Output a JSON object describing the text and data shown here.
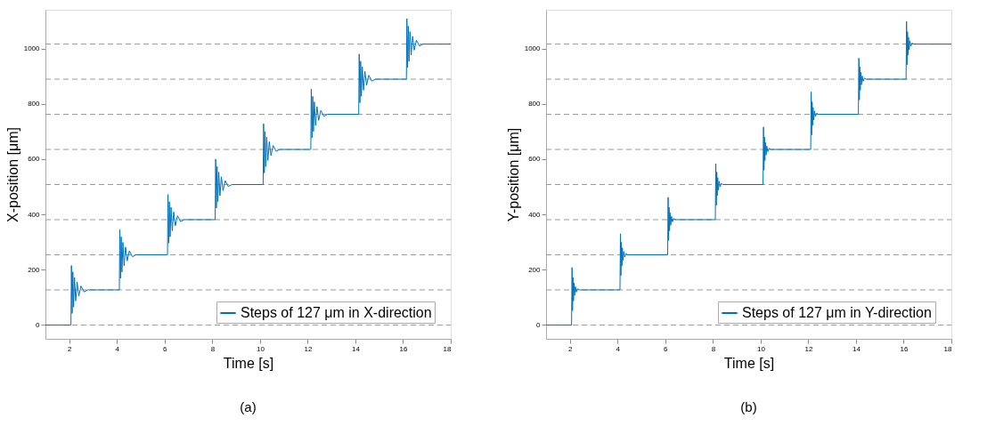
{
  "chart_data": [
    {
      "type": "line",
      "xlabel": "Time [s]",
      "ylabel": "X-position [μm]",
      "annotations": [
        "(a)"
      ],
      "xlim": [
        1,
        18
      ],
      "xticks": [
        2,
        4,
        6,
        8,
        10,
        12,
        14,
        16,
        18
      ],
      "ylim": [
        -50,
        1140
      ],
      "yticks": [
        0,
        200,
        400,
        600,
        800,
        1000
      ],
      "legend": "bottom right",
      "grid": false,
      "line_style": "solid",
      "ref_lines": [
        {
          "axis": "y",
          "value": 0,
          "color": "#999999",
          "line_style": "dashed"
        },
        {
          "axis": "y",
          "value": 127,
          "color": "#999999",
          "line_style": "dashed"
        },
        {
          "axis": "y",
          "value": 254,
          "color": "#999999",
          "line_style": "dashed"
        },
        {
          "axis": "y",
          "value": 381,
          "color": "#999999",
          "line_style": "dashed"
        },
        {
          "axis": "y",
          "value": 508,
          "color": "#999999",
          "line_style": "dashed"
        },
        {
          "axis": "y",
          "value": 635,
          "color": "#999999",
          "line_style": "dashed"
        },
        {
          "axis": "y",
          "value": 762,
          "color": "#999999",
          "line_style": "dashed"
        },
        {
          "axis": "y",
          "value": 889,
          "color": "#999999",
          "line_style": "dashed"
        },
        {
          "axis": "y",
          "value": 1016,
          "color": "#999999",
          "line_style": "dashed"
        }
      ],
      "series": [
        {
          "name": "Steps of 127 μm in X-direction",
          "color": "#0072bd",
          "x": [
            1,
            2.07,
            2.09,
            2.12,
            2.15,
            2.18,
            2.22,
            2.27,
            2.33,
            2.4,
            2.49,
            2.62,
            2.77,
            4.1,
            4.12,
            4.15,
            4.18,
            4.21,
            4.25,
            4.3,
            4.36,
            4.43,
            4.52,
            4.65,
            4.8,
            6.12,
            6.14,
            6.17,
            6.2,
            6.23,
            6.27,
            6.32,
            6.38,
            6.45,
            6.54,
            6.67,
            6.82,
            8.12,
            8.14,
            8.17,
            8.2,
            8.23,
            8.27,
            8.32,
            8.38,
            8.45,
            8.54,
            8.67,
            8.82,
            10.13,
            10.15,
            10.18,
            10.21,
            10.24,
            10.28,
            10.33,
            10.39,
            10.46,
            10.55,
            10.68,
            10.83,
            12.13,
            12.15,
            12.18,
            12.21,
            12.24,
            12.28,
            12.33,
            12.39,
            12.46,
            12.55,
            12.68,
            12.83,
            14.14,
            14.16,
            14.19,
            14.22,
            14.25,
            14.29,
            14.34,
            14.4,
            14.47,
            14.56,
            14.69,
            14.84,
            16.14,
            16.16,
            16.19,
            16.22,
            16.25,
            16.29,
            16.34,
            16.4,
            16.47,
            16.56,
            16.69,
            16.84,
            18
          ],
          "values": [
            0,
            0,
            215,
            42,
            192,
            65,
            172,
            87,
            155,
            105,
            141,
            120,
            127,
            127,
            345,
            169,
            319,
            192,
            299,
            214,
            282,
            232,
            268,
            247,
            254,
            254,
            472,
            296,
            446,
            319,
            426,
            341,
            409,
            359,
            395,
            374,
            381,
            381,
            600,
            423,
            573,
            446,
            553,
            468,
            536,
            486,
            522,
            501,
            508,
            508,
            728,
            550,
            700,
            573,
            680,
            595,
            663,
            613,
            649,
            628,
            635,
            635,
            853,
            677,
            827,
            700,
            807,
            722,
            790,
            740,
            776,
            755,
            762,
            762,
            980,
            804,
            954,
            827,
            934,
            849,
            917,
            867,
            903,
            882,
            889,
            889,
            1108,
            931,
            1081,
            954,
            1061,
            976,
            1044,
            994,
            1030,
            1009,
            1016,
            1016
          ]
        }
      ]
    },
    {
      "type": "line",
      "xlabel": "Time [s]",
      "ylabel": "Y-position [μm]",
      "annotations": [
        "(b)"
      ],
      "xlim": [
        1,
        18
      ],
      "xticks": [
        2,
        4,
        6,
        8,
        10,
        12,
        14,
        16,
        18
      ],
      "ylim": [
        -50,
        1140
      ],
      "yticks": [
        0,
        200,
        400,
        600,
        800,
        1000
      ],
      "legend": "bottom right",
      "grid": false,
      "line_style": "solid",
      "ref_lines": [
        {
          "axis": "y",
          "value": 0,
          "color": "#999999",
          "line_style": "dashed"
        },
        {
          "axis": "y",
          "value": 127,
          "color": "#999999",
          "line_style": "dashed"
        },
        {
          "axis": "y",
          "value": 254,
          "color": "#999999",
          "line_style": "dashed"
        },
        {
          "axis": "y",
          "value": 381,
          "color": "#999999",
          "line_style": "dashed"
        },
        {
          "axis": "y",
          "value": 508,
          "color": "#999999",
          "line_style": "dashed"
        },
        {
          "axis": "y",
          "value": 635,
          "color": "#999999",
          "line_style": "dashed"
        },
        {
          "axis": "y",
          "value": 762,
          "color": "#999999",
          "line_style": "dashed"
        },
        {
          "axis": "y",
          "value": 889,
          "color": "#999999",
          "line_style": "dashed"
        },
        {
          "axis": "y",
          "value": 1016,
          "color": "#999999",
          "line_style": "dashed"
        }
      ],
      "series": [
        {
          "name": "Steps of 127 μm in Y-direction",
          "color": "#0072bd",
          "x": [
            1,
            2.07,
            2.09,
            2.11,
            2.13,
            2.15,
            2.17,
            2.2,
            2.23,
            2.27,
            2.32,
            2.39,
            4.1,
            4.12,
            4.14,
            4.16,
            4.18,
            4.2,
            4.23,
            4.26,
            4.3,
            4.35,
            4.42,
            6.1,
            6.12,
            6.14,
            6.16,
            6.18,
            6.2,
            6.23,
            6.26,
            6.3,
            6.35,
            6.42,
            8.1,
            8.12,
            8.14,
            8.16,
            8.18,
            8.2,
            8.23,
            8.26,
            8.3,
            8.35,
            8.42,
            10.1,
            10.12,
            10.14,
            10.16,
            10.18,
            10.2,
            10.23,
            10.26,
            10.3,
            10.35,
            10.42,
            12.1,
            12.12,
            12.14,
            12.16,
            12.18,
            12.2,
            12.23,
            12.26,
            12.3,
            12.35,
            12.42,
            14.1,
            14.12,
            14.14,
            14.16,
            14.18,
            14.2,
            14.23,
            14.26,
            14.3,
            14.35,
            14.42,
            16.1,
            16.12,
            16.14,
            16.16,
            16.18,
            16.2,
            16.23,
            16.26,
            16.3,
            16.35,
            16.42,
            18
          ],
          "values": [
            0,
            0,
            208,
            52,
            172,
            87,
            152,
            107,
            139,
            119,
            131,
            127,
            127,
            330,
            179,
            299,
            214,
            279,
            234,
            266,
            246,
            258,
            254,
            254,
            462,
            306,
            426,
            341,
            406,
            361,
            393,
            373,
            385,
            381,
            381,
            583,
            433,
            553,
            468,
            533,
            488,
            520,
            500,
            512,
            508,
            508,
            716,
            560,
            680,
            595,
            660,
            615,
            647,
            627,
            639,
            635,
            635,
            843,
            687,
            807,
            722,
            787,
            742,
            774,
            754,
            766,
            762,
            762,
            965,
            814,
            934,
            849,
            914,
            869,
            901,
            881,
            893,
            889,
            889,
            1098,
            941,
            1061,
            976,
            1041,
            996,
            1028,
            1008,
            1020,
            1016,
            1016
          ]
        }
      ]
    }
  ]
}
